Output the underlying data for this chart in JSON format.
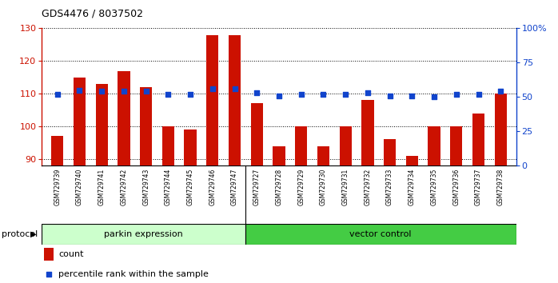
{
  "title": "GDS4476 / 8037502",
  "samples": [
    "GSM729739",
    "GSM729740",
    "GSM729741",
    "GSM729742",
    "GSM729743",
    "GSM729744",
    "GSM729745",
    "GSM729746",
    "GSM729747",
    "GSM729727",
    "GSM729728",
    "GSM729729",
    "GSM729730",
    "GSM729731",
    "GSM729732",
    "GSM729733",
    "GSM729734",
    "GSM729735",
    "GSM729736",
    "GSM729737",
    "GSM729738"
  ],
  "count_values": [
    97,
    115,
    113,
    117,
    112,
    100,
    99,
    128,
    128,
    107,
    94,
    100,
    94,
    100,
    108,
    96,
    91,
    100,
    100,
    104,
    110
  ],
  "percentile_values": [
    52,
    55,
    54,
    54,
    54,
    52,
    52,
    56,
    56,
    53,
    51,
    52,
    52,
    52,
    53,
    51,
    51,
    50,
    52,
    52,
    54
  ],
  "bar_color": "#cc1100",
  "square_color": "#1144cc",
  "ylim_left": [
    88,
    130
  ],
  "ylim_right": [
    0,
    100
  ],
  "yticks_left": [
    90,
    100,
    110,
    120,
    130
  ],
  "yticks_right": [
    0,
    25,
    50,
    75,
    100
  ],
  "ytick_right_labels": [
    "0",
    "25",
    "50",
    "75",
    "100%"
  ],
  "group1_label": "parkin expression",
  "group2_label": "vector control",
  "group1_count": 9,
  "group2_count": 12,
  "group1_color": "#ccffcc",
  "group2_color": "#44cc44",
  "protocol_label": "protocol",
  "legend_count_label": "count",
  "legend_pct_label": "percentile rank within the sample",
  "bg_color": "#ffffff",
  "tick_area_color": "#c8c8c8",
  "bar_width": 0.55,
  "square_size": 18
}
